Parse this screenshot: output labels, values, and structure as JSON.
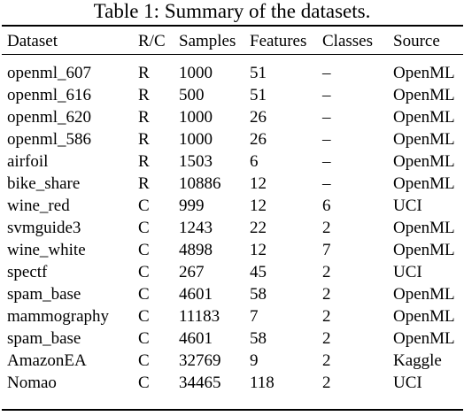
{
  "caption": "Table 1: Summary of the datasets.",
  "columns": [
    "Dataset",
    "R/C",
    "Samples",
    "Features",
    "Classes",
    "Source"
  ],
  "rows": [
    [
      "openml_607",
      "R",
      "1000",
      "51",
      "–",
      "OpenML"
    ],
    [
      "openml_616",
      "R",
      "500",
      "51",
      "–",
      "OpenML"
    ],
    [
      "openml_620",
      "R",
      "1000",
      "26",
      "–",
      "OpenML"
    ],
    [
      "openml_586",
      "R",
      "1000",
      "26",
      "–",
      "OpenML"
    ],
    [
      "airfoil",
      "R",
      "1503",
      "6",
      "–",
      "OpenML"
    ],
    [
      "bike_share",
      "R",
      "10886",
      "12",
      "–",
      "OpenML"
    ],
    [
      "wine_red",
      "C",
      "999",
      "12",
      "6",
      "UCI"
    ],
    [
      "svmguide3",
      "C",
      "1243",
      "22",
      "2",
      "OpenML"
    ],
    [
      "wine_white",
      "C",
      "4898",
      "12",
      "7",
      "OpenML"
    ],
    [
      "spectf",
      "C",
      "267",
      "45",
      "2",
      "UCI"
    ],
    [
      "spam_base",
      "C",
      "4601",
      "58",
      "2",
      "OpenML"
    ],
    [
      "mammography",
      "C",
      "11183",
      "7",
      "2",
      "OpenML"
    ],
    [
      "spam_base",
      "C",
      "4601",
      "58",
      "2",
      "OpenML"
    ],
    [
      "AmazonEA",
      "C",
      "32769",
      "9",
      "2",
      "Kaggle"
    ],
    [
      "Nomao",
      "C",
      "34465",
      "118",
      "2",
      "UCI"
    ]
  ]
}
